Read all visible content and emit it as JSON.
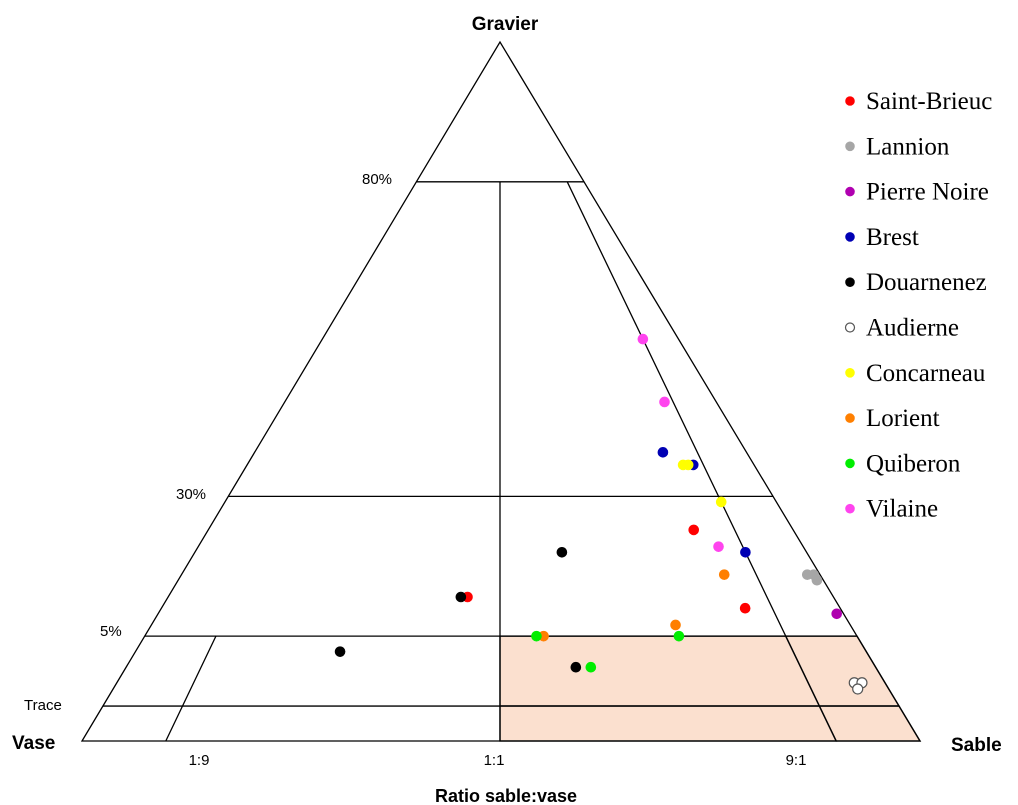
{
  "chart_data": {
    "type": "scatter",
    "subtype": "ternary-folk",
    "vertices": {
      "top": "Gravier",
      "left": "Vase",
      "right": "Sable"
    },
    "x_title": "Ratio sable:vase",
    "x_ticks": [
      "1:9",
      "1:1",
      "9:1"
    ],
    "gravel_levels": [
      "80%",
      "30%",
      "5%",
      "Trace"
    ],
    "gravel_level_values": [
      80,
      30,
      5,
      0.5
    ],
    "highlight_color": "#fbe0cf",
    "legend_position": "right",
    "series": [
      {
        "name": "Saint-Brieuc",
        "color": "#ff0000",
        "hollow": false,
        "points": [
          {
            "ratio": 0.45,
            "gravel": 12
          },
          {
            "ratio": 0.83,
            "gravel": 24
          },
          {
            "ratio": 0.86,
            "gravel": 10
          }
        ]
      },
      {
        "name": "Lannion",
        "color": "#a6a6a6",
        "hollow": false,
        "points": [
          {
            "ratio": 0.98,
            "gravel": 16
          },
          {
            "ratio": 0.99,
            "gravel": 16
          },
          {
            "ratio": 0.99,
            "gravel": 15
          }
        ]
      },
      {
        "name": "Pierre Noire",
        "color": "#b000b0",
        "hollow": false,
        "points": [
          {
            "ratio": 0.99,
            "gravel": 9
          }
        ]
      },
      {
        "name": "Brest",
        "color": "#0000b4",
        "hollow": false,
        "points": [
          {
            "ratio": 0.83,
            "gravel": 37
          },
          {
            "ratio": 0.88,
            "gravel": 35
          },
          {
            "ratio": 0.9,
            "gravel": 20
          }
        ]
      },
      {
        "name": "Douarnenez",
        "color": "#000000",
        "hollow": false,
        "points": [
          {
            "ratio": 0.44,
            "gravel": 12
          },
          {
            "ratio": 0.28,
            "gravel": 4
          },
          {
            "ratio": 0.6,
            "gravel": 20
          },
          {
            "ratio": 0.6,
            "gravel": 3
          }
        ]
      },
      {
        "name": "Audierne",
        "color": "#ffffff",
        "hollow": true,
        "points": [
          {
            "ratio": 0.96,
            "gravel": 2
          },
          {
            "ratio": 0.97,
            "gravel": 2
          },
          {
            "ratio": 0.96,
            "gravel": 1.6
          }
        ]
      },
      {
        "name": "Concarneau",
        "color": "#ffff00",
        "hollow": false,
        "points": [
          {
            "ratio": 0.87,
            "gravel": 35
          },
          {
            "ratio": 0.86,
            "gravel": 35
          },
          {
            "ratio": 0.9,
            "gravel": 29
          }
        ]
      },
      {
        "name": "Lorient",
        "color": "#ff7f00",
        "hollow": false,
        "points": [
          {
            "ratio": 0.56,
            "gravel": 5
          },
          {
            "ratio": 0.75,
            "gravel": 7
          },
          {
            "ratio": 0.85,
            "gravel": 16
          }
        ]
      },
      {
        "name": "Quiberon",
        "color": "#00ee00",
        "hollow": false,
        "points": [
          {
            "ratio": 0.55,
            "gravel": 5
          },
          {
            "ratio": 0.62,
            "gravel": 3
          },
          {
            "ratio": 0.75,
            "gravel": 5
          }
        ]
      },
      {
        "name": "Vilaine",
        "color": "#ff44ee",
        "hollow": false,
        "points": [
          {
            "ratio": 0.9,
            "gravel": 55
          },
          {
            "ratio": 0.88,
            "gravel": 45
          },
          {
            "ratio": 0.86,
            "gravel": 21
          }
        ]
      }
    ]
  }
}
